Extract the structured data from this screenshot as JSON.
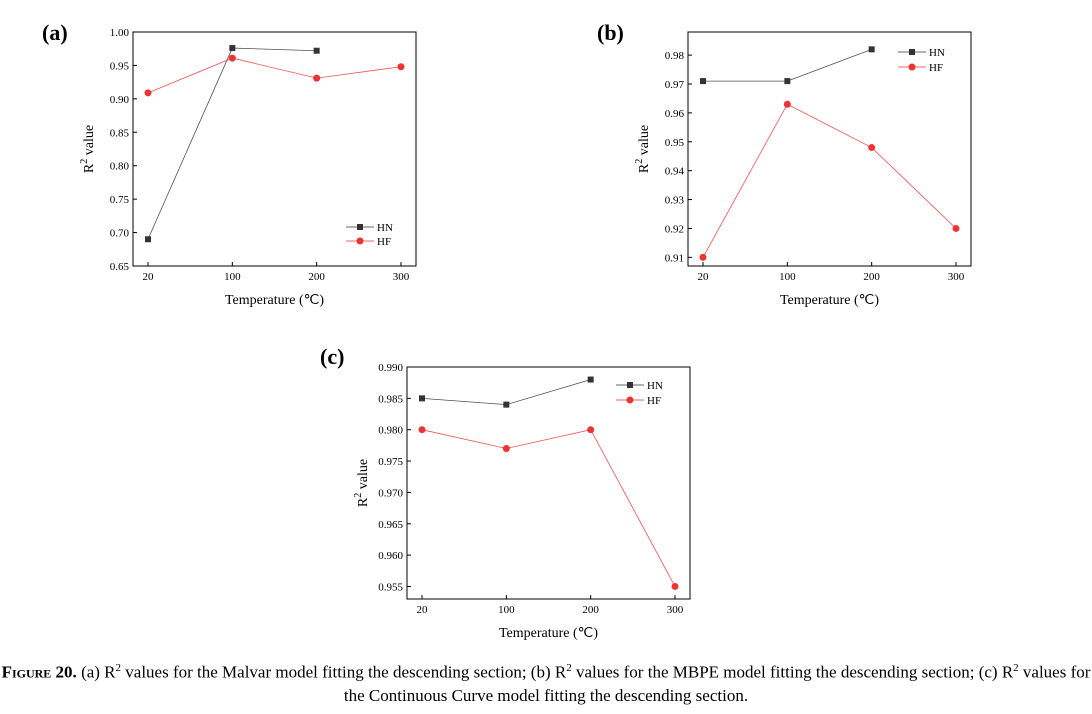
{
  "chart_data": [
    {
      "type": "line",
      "panel": "(a)",
      "categories": [
        "20",
        "100",
        "200",
        "300"
      ],
      "ylabel_base": "R",
      "ylabel_sup": "2",
      "ylabel_tail": " value",
      "xlabel": "Temperature (℃)",
      "ylim": [
        0.65,
        1.0
      ],
      "yticks": [
        "0.65",
        "0.70",
        "0.75",
        "0.80",
        "0.85",
        "0.90",
        "0.95",
        "1.00"
      ],
      "series": [
        {
          "name": "HN",
          "values": [
            0.69,
            0.976,
            0.972,
            null
          ],
          "color": "#333333",
          "marker": "square"
        },
        {
          "name": "HF",
          "values": [
            0.909,
            0.961,
            0.931,
            0.948
          ],
          "color": "#ee3333",
          "marker": "circle"
        }
      ],
      "legend": "bottom-right"
    },
    {
      "type": "line",
      "panel": "(b)",
      "categories": [
        "20",
        "100",
        "200",
        "300"
      ],
      "ylabel_base": "R",
      "ylabel_sup": "2",
      "ylabel_tail": " value",
      "xlabel": "Temperature (℃)",
      "ylim": [
        0.907,
        0.988
      ],
      "yticks": [
        "0.91",
        "0.92",
        "0.93",
        "0.94",
        "0.95",
        "0.96",
        "0.97",
        "0.98"
      ],
      "series": [
        {
          "name": "HN",
          "values": [
            0.971,
            0.971,
            0.982,
            null
          ],
          "color": "#333333",
          "marker": "square"
        },
        {
          "name": "HF",
          "values": [
            0.91,
            0.963,
            0.948,
            0.92
          ],
          "color": "#ee3333",
          "marker": "circle"
        }
      ],
      "legend": "top-right"
    },
    {
      "type": "line",
      "panel": "(c)",
      "categories": [
        "20",
        "100",
        "200",
        "300"
      ],
      "ylabel_base": "R",
      "ylabel_sup": "2",
      "ylabel_tail": " value",
      "xlabel": "Temperature (℃)",
      "ylim": [
        0.953,
        0.99
      ],
      "yticks": [
        "0.955",
        "0.960",
        "0.965",
        "0.970",
        "0.975",
        "0.980",
        "0.985",
        "0.990"
      ],
      "series": [
        {
          "name": "HN",
          "values": [
            0.985,
            0.984,
            0.988,
            null
          ],
          "color": "#333333",
          "marker": "square"
        },
        {
          "name": "HF",
          "values": [
            0.98,
            0.977,
            0.98,
            0.955
          ],
          "color": "#ee3333",
          "marker": "circle"
        }
      ],
      "legend": "top-right"
    }
  ],
  "caption": {
    "label": "Figure 20.",
    "text_parts": [
      " (a) R",
      "2",
      " values for the Malvar model fitting the descending section; (b) R",
      "2",
      " values for the MBPE model fitting the descending section; (c) R",
      "2",
      " values for the Continuous Curve model fitting the descending section."
    ]
  }
}
